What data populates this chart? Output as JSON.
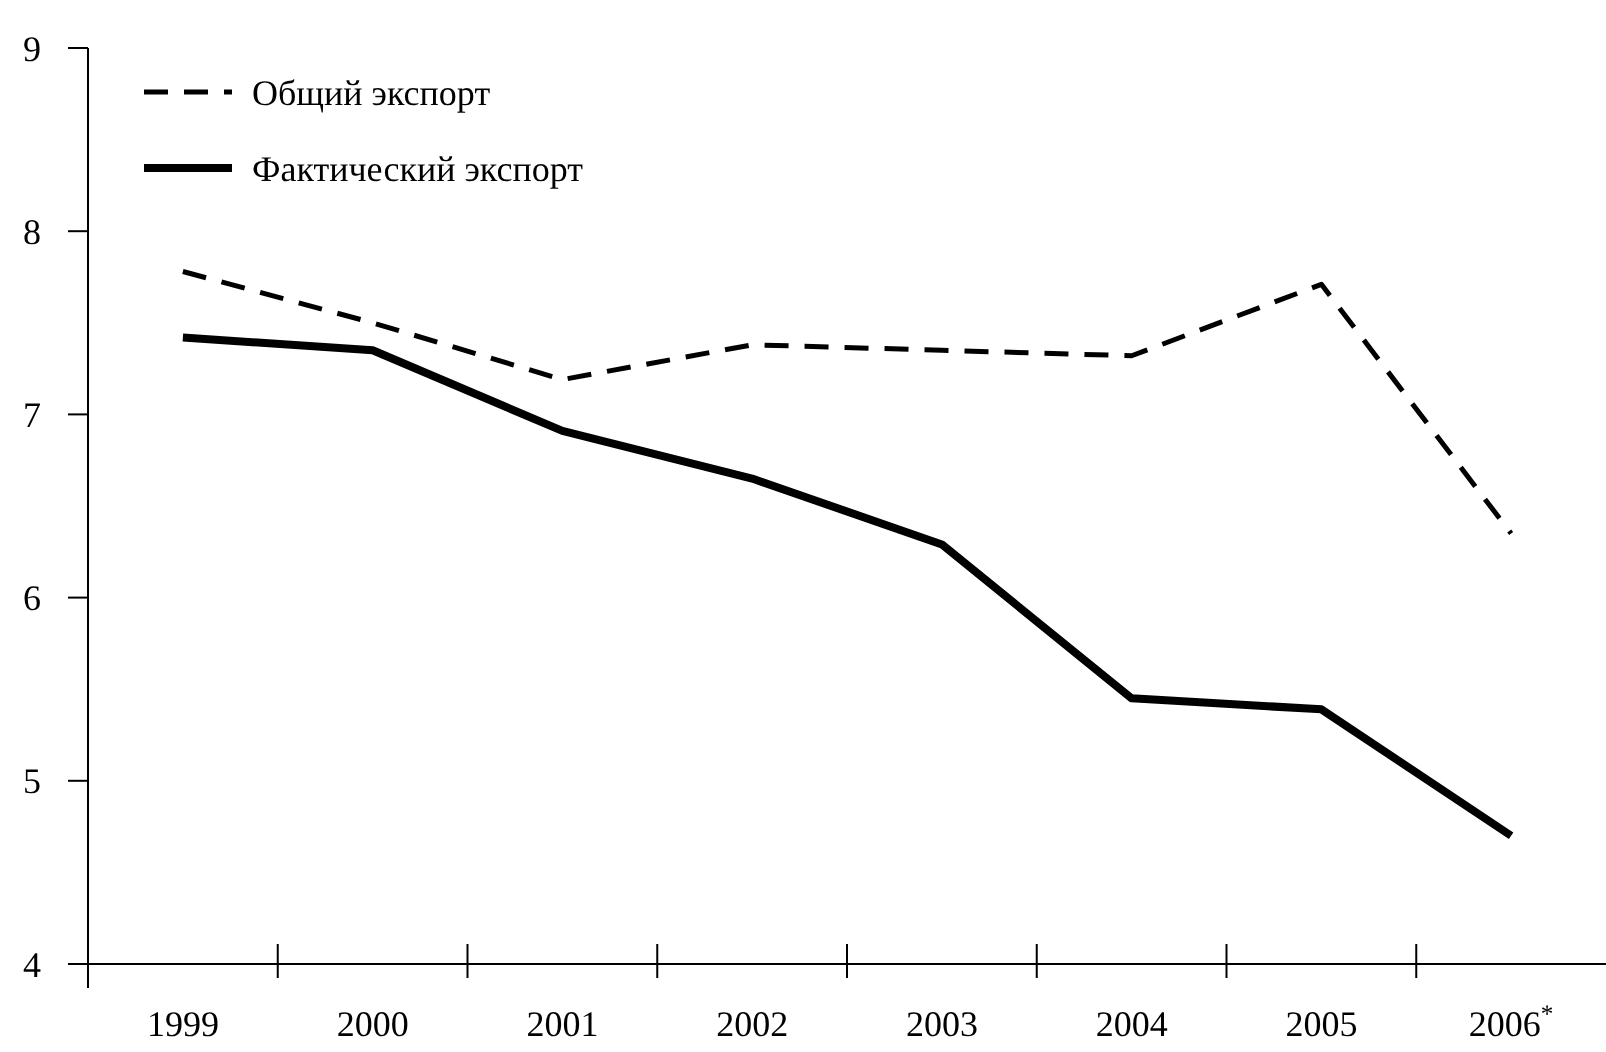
{
  "chart_data": {
    "type": "line",
    "categories": [
      "1999",
      "2000",
      "2001",
      "2002",
      "2003",
      "2004",
      "2005",
      "2006$^{*}$"
    ],
    "series": [
      {
        "name": "Общий экспорт",
        "color": "#000000",
        "line_style": "dashed",
        "values": [
          7.78,
          7.5,
          7.19,
          7.38,
          7.35,
          7.32,
          7.71,
          6.35
        ]
      },
      {
        "name": "Фактический экспорт",
        "color": "#000000",
        "line_style": "solid",
        "values": [
          7.42,
          7.35,
          6.91,
          6.65,
          6.29,
          5.45,
          5.39,
          4.7
        ]
      }
    ],
    "ylim": [
      4,
      9
    ],
    "yticks": [
      4,
      5,
      6,
      7,
      8,
      9
    ],
    "grid": false,
    "legend": "top left",
    "marker": "none"
  }
}
